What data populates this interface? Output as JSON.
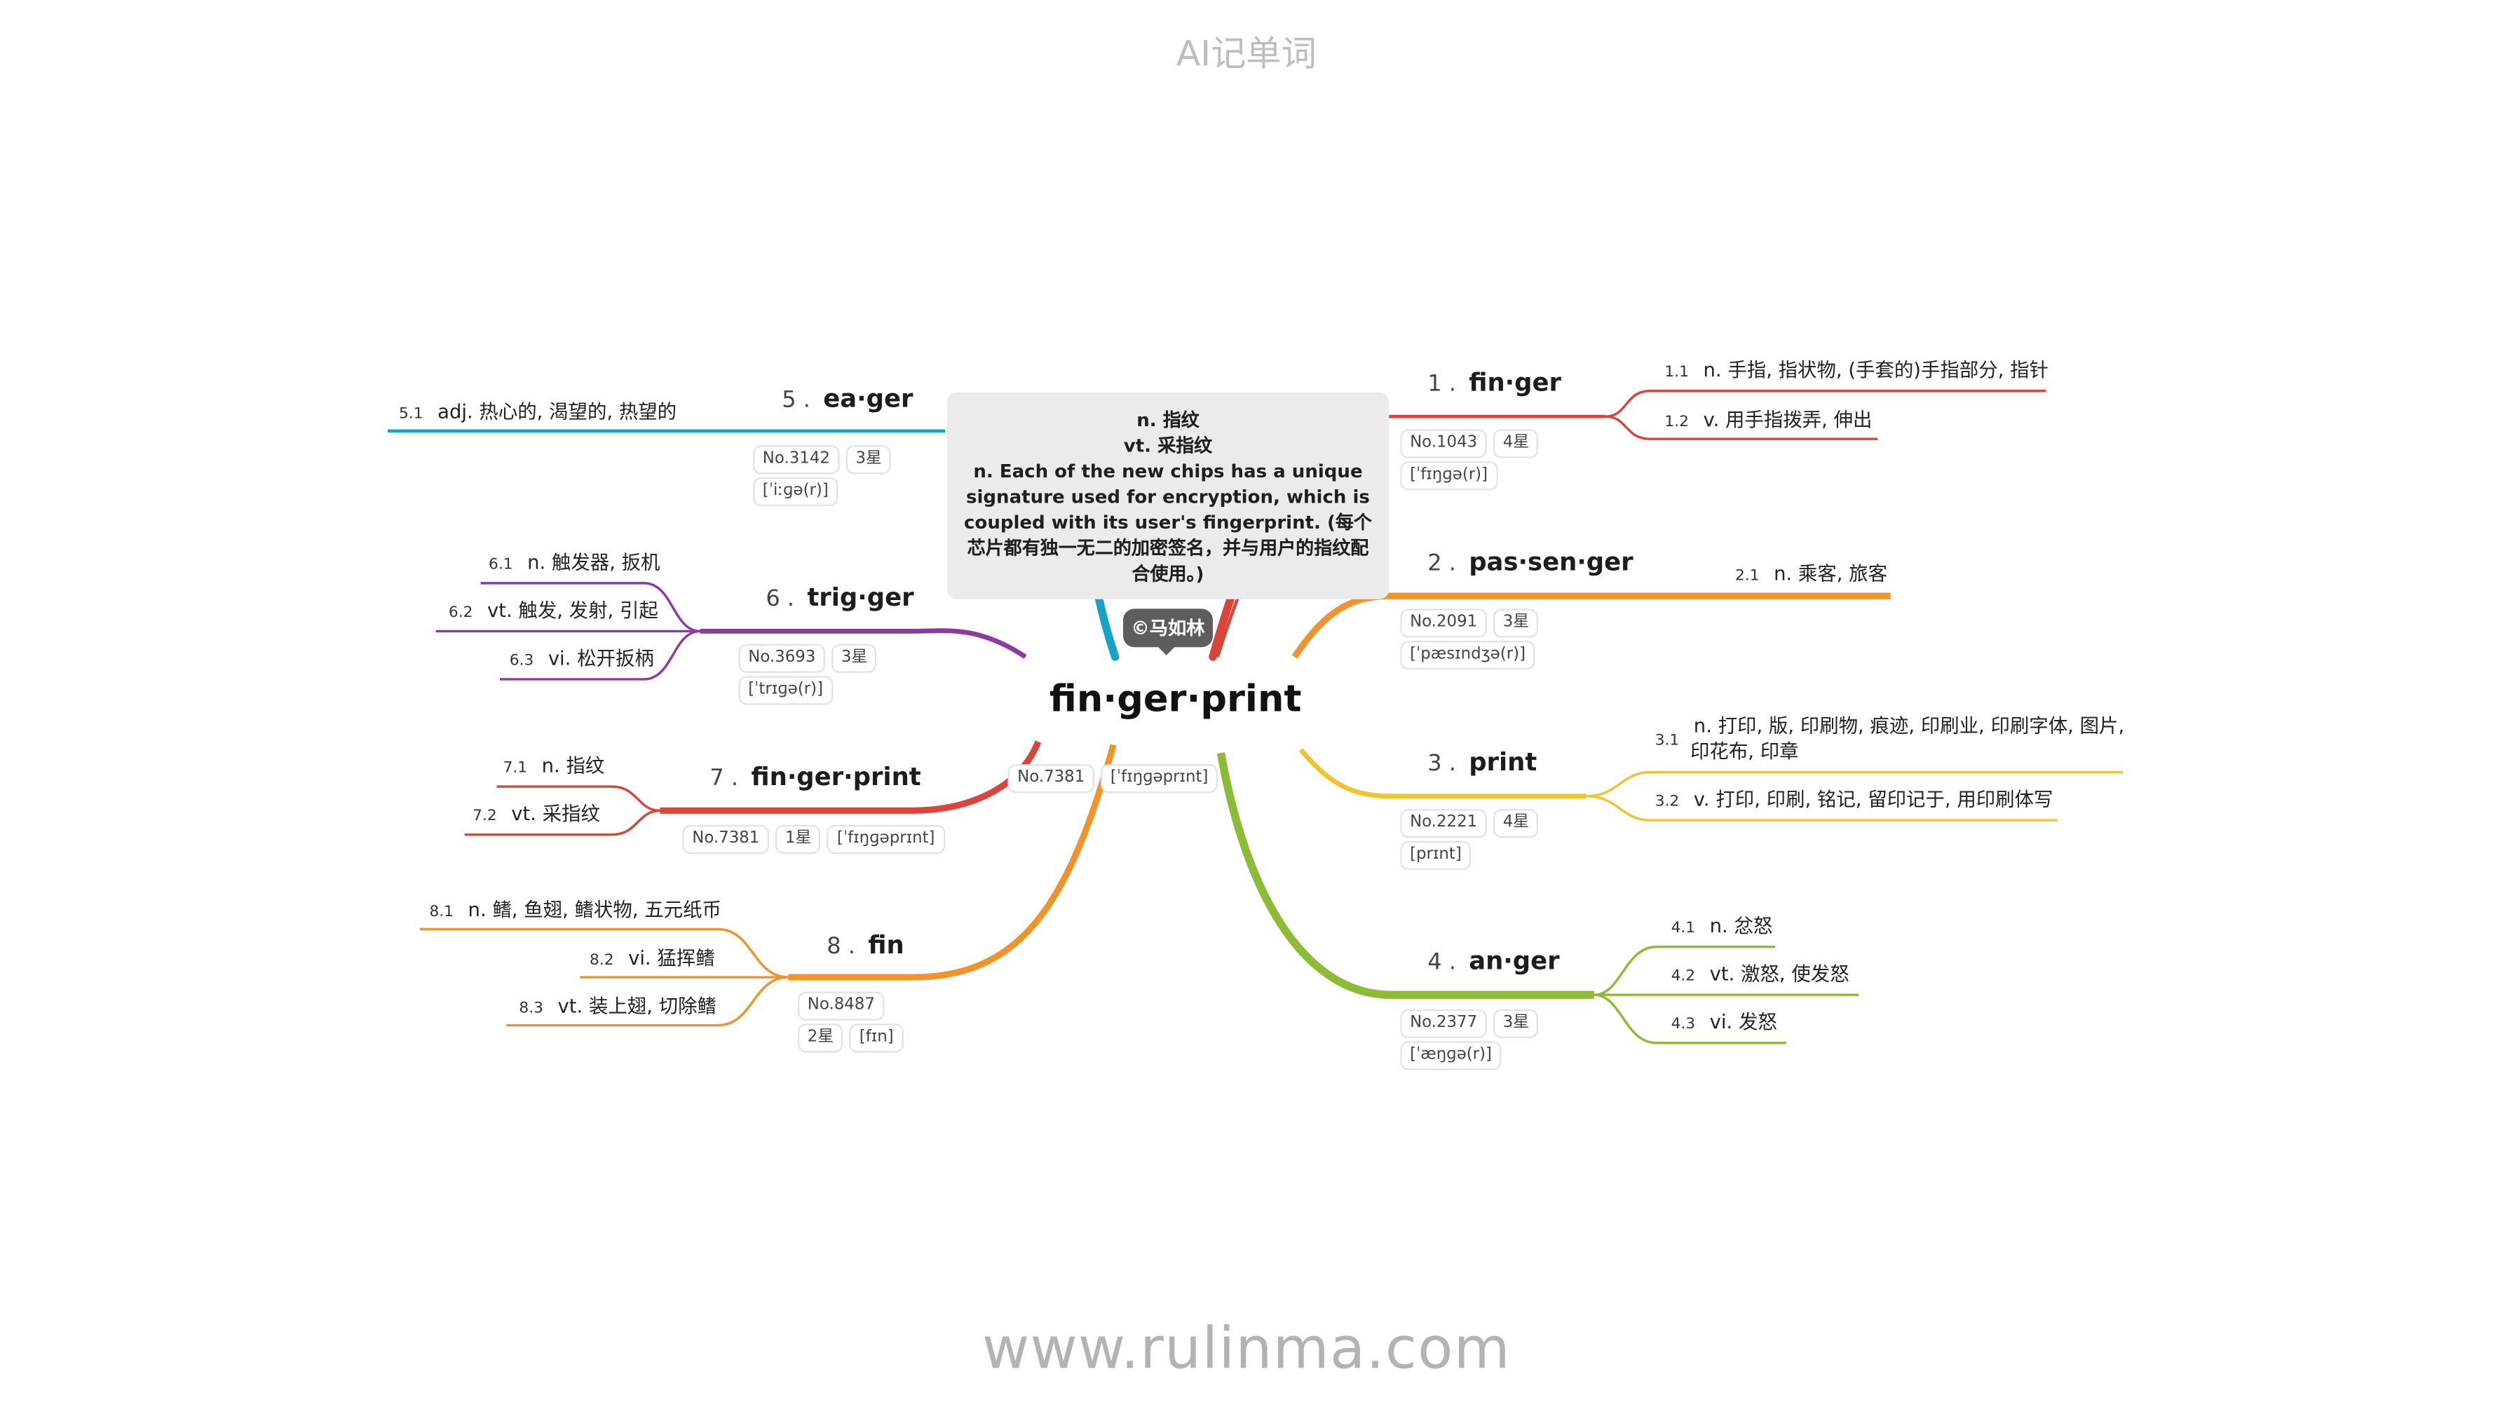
{
  "header": "AI记单词",
  "footer": "www.rulinma.com",
  "center": {
    "word": "fin·ger·print",
    "no": "No.7381",
    "phonetic": "[ˈfɪŋɡəprɪnt]",
    "badge": "©马如林",
    "tooltip": [
      "n. 指纹",
      "vt. 采指纹",
      "n. Each of the new chips has a unique signature used for encryption, which is coupled with its user's fingerprint. (每个芯片都有独一无二的加密签名，并与用户的指纹配合使用。)"
    ]
  },
  "colors": {
    "finger": "#d9453a",
    "passenger": "#f0932a",
    "print": "#f2c230",
    "anger": "#8dbb38",
    "eager": "#17a2c6",
    "trigger": "#8a3aa0",
    "fingerprint": "#d9453a",
    "fin": "#f0932a"
  },
  "branches": [
    {
      "num": "1 .",
      "word": "fin·ger",
      "no": "No.1043",
      "stars": "4星",
      "phonetic": "[ˈfɪŋɡə(r)]",
      "senses": [
        {
          "num": "1.1",
          "text": "n. 手指, 指状物, (手套的)手指部分, 指针"
        },
        {
          "num": "1.2",
          "text": "v. 用手指拨弄, 伸出"
        }
      ]
    },
    {
      "num": "2 .",
      "word": "pas·sen·ger",
      "no": "No.2091",
      "stars": "3星",
      "phonetic": "[ˈpæsɪndʒə(r)]",
      "senses": [
        {
          "num": "2.1",
          "text": "n. 乘客, 旅客"
        }
      ]
    },
    {
      "num": "3 .",
      "word": "print",
      "no": "No.2221",
      "stars": "4星",
      "phonetic": "[prɪnt]",
      "senses": [
        {
          "num": "3.1",
          "text": "n. 打印, 版, 印刷物, 痕迹, 印刷业, 印刷字体, 图片,",
          "text2": "印花布, 印章"
        },
        {
          "num": "3.2",
          "text": "v. 打印, 印刷, 铭记, 留印记于, 用印刷体写"
        }
      ]
    },
    {
      "num": "4 .",
      "word": "an·ger",
      "no": "No.2377",
      "stars": "3星",
      "phonetic": "[ˈæŋɡə(r)]",
      "senses": [
        {
          "num": "4.1",
          "text": "n. 忿怒"
        },
        {
          "num": "4.2",
          "text": "vt. 激怒, 使发怒"
        },
        {
          "num": "4.3",
          "text": "vi. 发怒"
        }
      ]
    },
    {
      "num": "5 .",
      "word": "ea·ger",
      "no": "No.3142",
      "stars": "3星",
      "phonetic": "[ˈiːɡə(r)]",
      "senses": [
        {
          "num": "5.1",
          "text": "adj. 热心的, 渴望的, 热望的"
        }
      ]
    },
    {
      "num": "6 .",
      "word": "trig·ger",
      "no": "No.3693",
      "stars": "3星",
      "phonetic": "[ˈtrɪɡə(r)]",
      "senses": [
        {
          "num": "6.1",
          "text": "n. 触发器, 扳机"
        },
        {
          "num": "6.2",
          "text": "vt. 触发, 发射, 引起"
        },
        {
          "num": "6.3",
          "text": "vi. 松开扳柄"
        }
      ]
    },
    {
      "num": "7 .",
      "word": "fin·ger·print",
      "no": "No.7381",
      "stars": "1星",
      "phonetic": "[ˈfɪŋɡəprɪnt]",
      "senses": [
        {
          "num": "7.1",
          "text": "n. 指纹"
        },
        {
          "num": "7.2",
          "text": "vt. 采指纹"
        }
      ]
    },
    {
      "num": "8 .",
      "word": "fin",
      "no": "No.8487",
      "stars": "2星",
      "phonetic": "[fɪn]",
      "senses": [
        {
          "num": "8.1",
          "text": "n. 鳍, 鱼翅, 鳍状物, 五元纸币"
        },
        {
          "num": "8.2",
          "text": "vi. 猛挥鳍"
        },
        {
          "num": "8.3",
          "text": "vt. 装上翅, 切除鳍"
        }
      ]
    }
  ]
}
